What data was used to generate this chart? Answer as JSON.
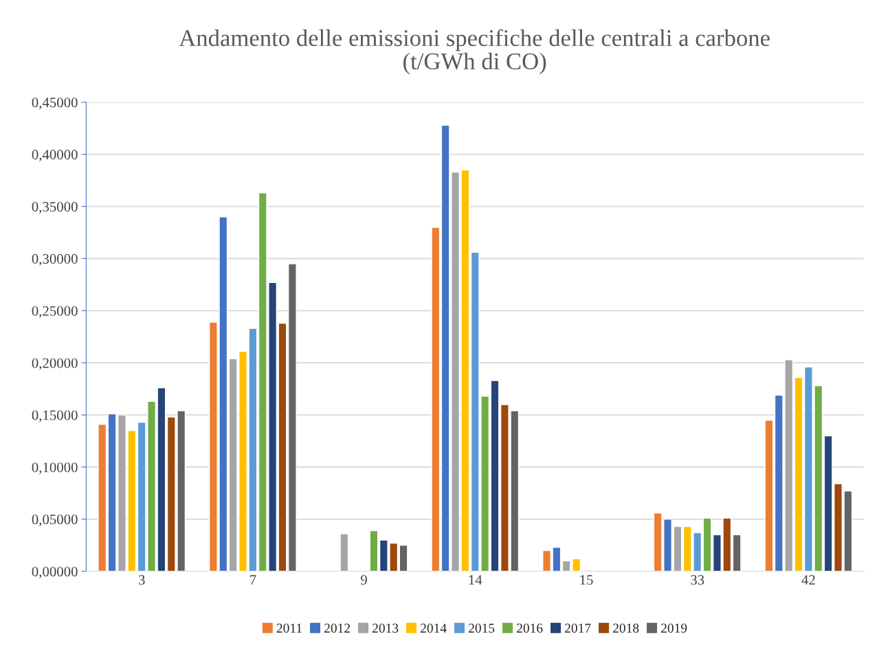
{
  "chart_data": {
    "type": "bar",
    "title": "Andamento delle emissioni specifiche delle centrali a carbone\n(t/GWh di CO)",
    "categories": [
      "3",
      "7",
      "9",
      "14",
      "15",
      "33",
      "42"
    ],
    "series": [
      {
        "name": "2011",
        "color": "#ed7d31",
        "values": [
          0.141,
          0.239,
          null,
          0.33,
          0.02,
          0.056,
          0.145
        ]
      },
      {
        "name": "2012",
        "color": "#4472c4",
        "values": [
          0.151,
          0.34,
          null,
          0.428,
          0.023,
          0.05,
          0.169
        ]
      },
      {
        "name": "2013",
        "color": "#a5a5a5",
        "values": [
          0.15,
          0.204,
          0.036,
          0.383,
          0.01,
          0.043,
          0.203
        ]
      },
      {
        "name": "2014",
        "color": "#ffc000",
        "values": [
          0.135,
          0.211,
          null,
          0.385,
          0.012,
          0.043,
          0.186
        ]
      },
      {
        "name": "2015",
        "color": "#5b9bd5",
        "values": [
          0.143,
          0.233,
          null,
          0.306,
          null,
          0.037,
          0.196
        ]
      },
      {
        "name": "2016",
        "color": "#70ad47",
        "values": [
          0.163,
          0.363,
          0.039,
          0.168,
          null,
          0.051,
          0.178
        ]
      },
      {
        "name": "2017",
        "color": "#264478",
        "values": [
          0.176,
          0.277,
          0.03,
          0.183,
          null,
          0.035,
          0.13
        ]
      },
      {
        "name": "2018",
        "color": "#9e480e",
        "values": [
          0.148,
          0.238,
          0.027,
          0.16,
          null,
          0.051,
          0.084
        ]
      },
      {
        "name": "2019",
        "color": "#636363",
        "values": [
          0.154,
          0.295,
          0.025,
          0.154,
          null,
          0.035,
          0.077
        ]
      }
    ],
    "ylim": [
      0,
      0.45
    ],
    "yticks": [
      {
        "value": 0,
        "label": "0,00000"
      },
      {
        "value": 0.05,
        "label": "0,05000"
      },
      {
        "value": 0.1,
        "label": "0,10000"
      },
      {
        "value": 0.15,
        "label": "0,15000"
      },
      {
        "value": 0.2,
        "label": "0,20000"
      },
      {
        "value": 0.25,
        "label": "0,25000"
      },
      {
        "value": 0.3,
        "label": "0,30000"
      },
      {
        "value": 0.35,
        "label": "0,35000"
      },
      {
        "value": 0.4,
        "label": "0,40000"
      },
      {
        "value": 0.45,
        "label": "0,45000"
      }
    ],
    "grid": "y",
    "legend": "bottom"
  }
}
